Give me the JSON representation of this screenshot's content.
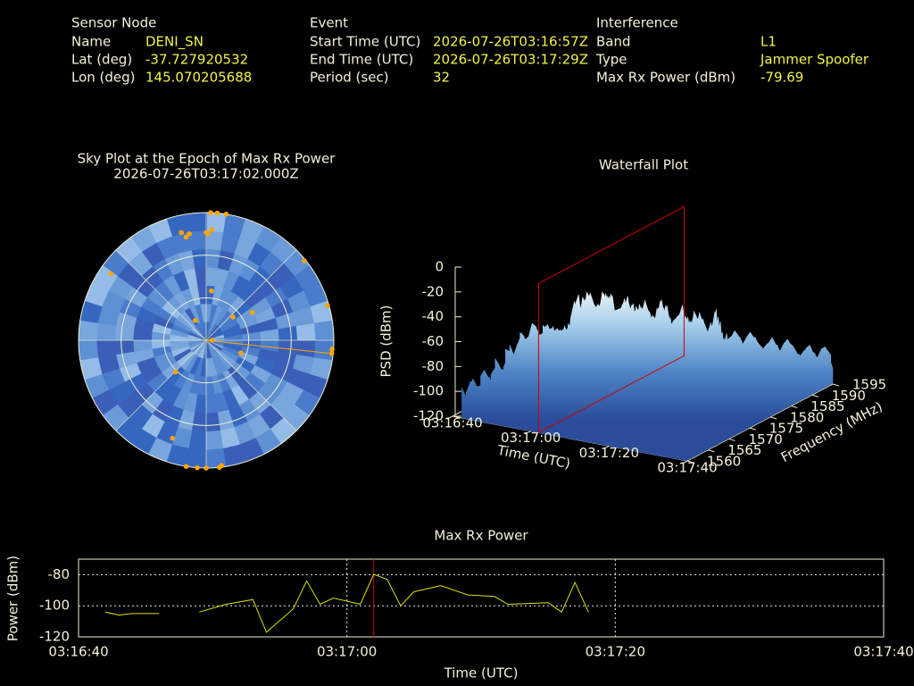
{
  "header": {
    "sections": [
      {
        "title": "Sensor Node",
        "rows": [
          [
            "Name",
            "DENI_SN"
          ],
          [
            "Lat (deg)",
            "-37.727920532"
          ],
          [
            "Lon (deg)",
            "145.070205688"
          ]
        ]
      },
      {
        "title": "Event",
        "rows": [
          [
            "Start Time (UTC)",
            "2026-07-26T03:16:57Z"
          ],
          [
            "End Time (UTC)",
            "2026-07-26T03:17:29Z"
          ],
          [
            "Period (sec)",
            "32"
          ]
        ]
      },
      {
        "title": "Interference",
        "rows": [
          [
            "Band",
            "L1"
          ],
          [
            "Type",
            "Jammer  Spoofer"
          ],
          [
            "Max Rx Power (dBm)",
            "-79.69"
          ]
        ]
      }
    ]
  },
  "chart_data": [
    {
      "type": "polar",
      "title": "Sky Plot at the Epoch of Max Rx Power",
      "subtitle": "2026-07-26T03:17:02.000Z",
      "x": [
        2,
        5,
        9,
        347,
        351,
        349,
        0,
        3,
        1,
        305,
        51,
        74,
        94,
        96,
        6,
        49,
        59,
        331,
        90,
        110,
        224,
        199,
        189,
        184,
        180,
        174,
        173
      ],
      "values": [
        0,
        0,
        0,
        12,
        14,
        16,
        14,
        12,
        15,
        8,
        1,
        1,
        1,
        1,
        55,
        65,
        52,
        74,
        86,
        64,
        59,
        17,
        0,
        0,
        0,
        0,
        1
      ],
      "color": "#ffa500",
      "rings": [
        0,
        30,
        60
      ],
      "spokes": [
        0,
        45,
        90,
        135,
        180,
        225,
        270,
        315
      ]
    },
    {
      "type": "waterfall",
      "title": "Waterfall Plot",
      "xlabel": "Time (UTC)",
      "ylabel": "Frequency (MHz)",
      "zlabel": "PSD (dBm)",
      "xlim": [
        11800,
        11860
      ],
      "xticks": [
        {
          "value": 11800,
          "label": "03:16:40"
        },
        {
          "value": 11820,
          "label": "03:17:00"
        },
        {
          "value": 11840,
          "label": "03:17:20"
        },
        {
          "value": 11860,
          "label": "03:17:40"
        }
      ],
      "ylim": [
        1560,
        1595
      ],
      "yticks": [
        1560,
        1565,
        1570,
        1575,
        1580,
        1585,
        1590,
        1595
      ],
      "zlim": [
        -120,
        0
      ],
      "zticks": [
        0,
        -20,
        -40,
        -60,
        -80,
        -100,
        -120
      ],
      "marker_x": 11822,
      "marker_color": "#d00000"
    },
    {
      "type": "line",
      "title": "Max Rx Power",
      "xlabel": "Time (UTC)",
      "ylabel": "Power (dBm)",
      "x": [
        11802,
        11803,
        11804,
        11806,
        11808,
        11809,
        11811,
        11813,
        11814,
        11816,
        11817,
        11818,
        11819,
        11821,
        11822,
        11823,
        11824,
        11825,
        11827,
        11829,
        11831,
        11832,
        11835,
        11836,
        11837,
        11838
      ],
      "series": [
        {
          "color": "#e0e000",
          "values": [
            -104,
            -106,
            -105,
            -105,
            null,
            -104,
            -99,
            -96,
            -117,
            -102,
            -84,
            -99,
            -95,
            -99,
            -79.69,
            -83,
            -100,
            -91,
            -87,
            -93,
            -94,
            -99,
            -98,
            -104,
            -85,
            -104
          ]
        }
      ],
      "xlim": [
        11800,
        11860
      ],
      "xticks": [
        {
          "value": 11800,
          "label": "03:16:40"
        },
        {
          "value": 11820,
          "label": "03:17:00"
        },
        {
          "value": 11840,
          "label": "03:17:20"
        },
        {
          "value": 11860,
          "label": "03:17:40"
        }
      ],
      "ylim": [
        -120,
        -70
      ],
      "yticks": [
        -80,
        -100,
        -120
      ],
      "grid": true,
      "marker_x": 11822,
      "marker_color": "#d00000"
    }
  ]
}
